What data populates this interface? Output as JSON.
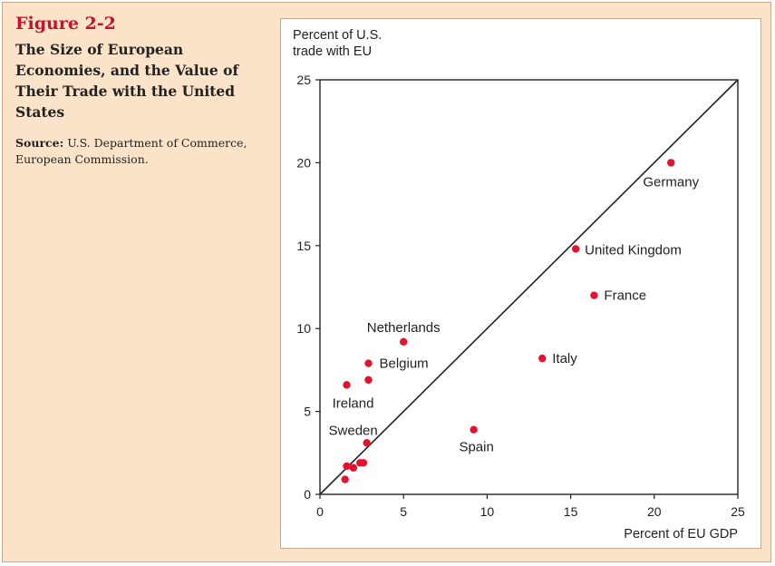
{
  "figure": {
    "label": "Figure 2-2",
    "title": "The Size of European Economies, and the Value of Their Trade with the United States",
    "source_label": "Source:",
    "source_text": "U.S. Department of Commerce, European Commission."
  },
  "chart_data": {
    "type": "scatter",
    "title": "",
    "ylabel_lines": [
      "Percent of U.S.",
      "trade with EU"
    ],
    "xlabel": "Percent of EU GDP",
    "xlim": [
      0,
      25
    ],
    "ylim": [
      0,
      25
    ],
    "xticks": [
      0,
      5,
      10,
      15,
      20,
      25
    ],
    "yticks": [
      0,
      5,
      10,
      15,
      20,
      25
    ],
    "grid": false,
    "reference_line": {
      "from": [
        0,
        0
      ],
      "to": [
        25,
        25
      ]
    },
    "point_color": "#e8112d",
    "points": [
      {
        "label": "Germany",
        "x": 21.0,
        "y": 20.0
      },
      {
        "label": "United Kingdom",
        "x": 15.3,
        "y": 14.8
      },
      {
        "label": "France",
        "x": 16.4,
        "y": 12.0
      },
      {
        "label": "Italy",
        "x": 13.3,
        "y": 8.2
      },
      {
        "label": "Netherlands",
        "x": 5.0,
        "y": 9.2
      },
      {
        "label": "Belgium",
        "x": 2.9,
        "y": 7.9
      },
      {
        "label": "",
        "x": 2.9,
        "y": 6.9
      },
      {
        "label": "Ireland",
        "x": 1.6,
        "y": 6.6
      },
      {
        "label": "Sweden",
        "x": 2.8,
        "y": 3.1
      },
      {
        "label": "Spain",
        "x": 9.2,
        "y": 3.9
      },
      {
        "label": "",
        "x": 1.6,
        "y": 1.7
      },
      {
        "label": "",
        "x": 2.0,
        "y": 1.6
      },
      {
        "label": "",
        "x": 2.4,
        "y": 1.9
      },
      {
        "label": "",
        "x": 2.6,
        "y": 1.9
      },
      {
        "label": "",
        "x": 1.5,
        "y": 0.9
      }
    ]
  }
}
